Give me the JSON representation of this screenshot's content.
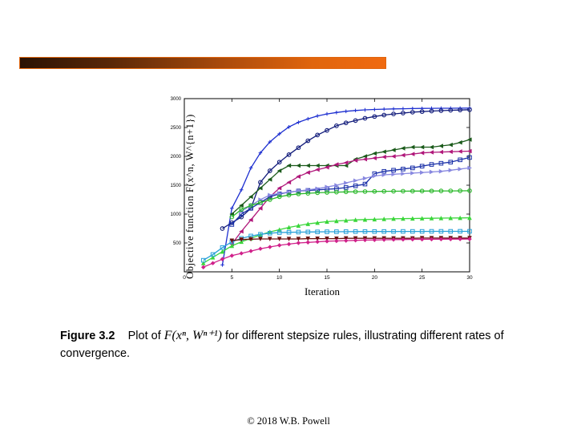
{
  "header": {
    "bar_color": "#e0650e"
  },
  "chart_data": {
    "type": "line",
    "title": "",
    "xlabel": "Iteration",
    "ylabel": "Objective function F(x^n, W^{n+1})",
    "xlim": [
      0,
      30
    ],
    "ylim": [
      0,
      3000
    ],
    "xticks": [
      0,
      5,
      10,
      15,
      20,
      25,
      30
    ],
    "yticks": [
      500,
      1000,
      1500,
      2000,
      2500,
      3000
    ],
    "grid": false,
    "series": [
      {
        "name": "plus-blue",
        "color": "#1d2fd0",
        "marker": "plus",
        "x": [
          4,
          5,
          6,
          7,
          8,
          9,
          10,
          11,
          12,
          13,
          14,
          15,
          16,
          17,
          18,
          19,
          20,
          21,
          22,
          23,
          24,
          25,
          26,
          27,
          28,
          29,
          30
        ],
        "values": [
          120,
          1100,
          1420,
          1800,
          2060,
          2250,
          2390,
          2510,
          2590,
          2650,
          2700,
          2735,
          2760,
          2780,
          2795,
          2805,
          2812,
          2818,
          2822,
          2825,
          2828,
          2830,
          2832,
          2833,
          2834,
          2835,
          2836
        ]
      },
      {
        "name": "circle-darkblue",
        "color": "#101a7a",
        "marker": "circle",
        "x": [
          4,
          5,
          6,
          7,
          8,
          9,
          10,
          11,
          12,
          13,
          14,
          15,
          16,
          17,
          18,
          19,
          20,
          21,
          22,
          23,
          24,
          25,
          26,
          27,
          28,
          29,
          30
        ],
        "values": [
          750,
          850,
          950,
          1100,
          1550,
          1750,
          1900,
          2030,
          2150,
          2270,
          2370,
          2450,
          2530,
          2580,
          2620,
          2660,
          2690,
          2715,
          2735,
          2750,
          2765,
          2775,
          2785,
          2792,
          2798,
          2803,
          2808
        ]
      },
      {
        "name": "triangle-left-darkgreen",
        "color": "#1a5a1a",
        "marker": "triangle-left",
        "x": [
          5,
          6,
          7,
          8,
          9,
          10,
          11,
          12,
          13,
          14,
          15,
          16,
          17,
          18,
          19,
          20,
          21,
          22,
          23,
          24,
          25,
          26,
          27,
          28,
          29,
          30
        ],
        "values": [
          1000,
          1150,
          1300,
          1450,
          1600,
          1750,
          1840,
          1840,
          1840,
          1840,
          1840,
          1840,
          1840,
          1950,
          2000,
          2050,
          2080,
          2110,
          2140,
          2160,
          2160,
          2160,
          2180,
          2200,
          2240,
          2290
        ]
      },
      {
        "name": "triangle-left-magenta",
        "color": "#b0177a",
        "marker": "triangle-left",
        "x": [
          5,
          6,
          7,
          8,
          9,
          10,
          11,
          12,
          13,
          14,
          15,
          16,
          17,
          18,
          19,
          20,
          21,
          22,
          23,
          24,
          25,
          26,
          27,
          28,
          29,
          30
        ],
        "values": [
          480,
          700,
          900,
          1100,
          1300,
          1450,
          1550,
          1650,
          1720,
          1770,
          1810,
          1860,
          1890,
          1930,
          1950,
          1970,
          1990,
          2000,
          2020,
          2040,
          2060,
          2070,
          2075,
          2080,
          2085,
          2090
        ]
      },
      {
        "name": "square-blue",
        "color": "#1a30a8",
        "marker": "square",
        "x": [
          5,
          6,
          7,
          8,
          9,
          10,
          11,
          12,
          13,
          14,
          15,
          16,
          17,
          18,
          19,
          20,
          21,
          22,
          23,
          24,
          25,
          26,
          27,
          28,
          29,
          30
        ],
        "values": [
          820,
          1000,
          1100,
          1200,
          1300,
          1350,
          1380,
          1400,
          1410,
          1420,
          1430,
          1440,
          1460,
          1490,
          1520,
          1700,
          1740,
          1760,
          1780,
          1800,
          1830,
          1860,
          1880,
          1900,
          1940,
          1980
        ]
      },
      {
        "name": "triangle-right-lavender",
        "color": "#8888e0",
        "marker": "triangle-right",
        "x": [
          6,
          7,
          8,
          9,
          10,
          11,
          12,
          13,
          14,
          15,
          16,
          17,
          18,
          19,
          20,
          21,
          22,
          23,
          24,
          25,
          26,
          27,
          28,
          29,
          30
        ],
        "values": [
          1050,
          1150,
          1250,
          1330,
          1360,
          1380,
          1400,
          1420,
          1440,
          1470,
          1500,
          1540,
          1580,
          1620,
          1660,
          1680,
          1690,
          1700,
          1710,
          1720,
          1730,
          1740,
          1760,
          1780,
          1800
        ]
      },
      {
        "name": "circle-green",
        "color": "#2ab82a",
        "marker": "circle",
        "x": [
          5,
          6,
          7,
          8,
          9,
          10,
          11,
          12,
          13,
          14,
          15,
          16,
          17,
          18,
          19,
          20,
          21,
          22,
          23,
          24,
          25,
          26,
          27,
          28,
          29,
          30
        ],
        "values": [
          950,
          1080,
          1150,
          1200,
          1250,
          1300,
          1330,
          1350,
          1360,
          1370,
          1375,
          1380,
          1385,
          1388,
          1390,
          1392,
          1394,
          1396,
          1397,
          1398,
          1399,
          1400,
          1401,
          1402,
          1403,
          1404
        ]
      },
      {
        "name": "triangle-up-green",
        "color": "#3ad63a",
        "marker": "triangle-up",
        "x": [
          2,
          3,
          4,
          5,
          6,
          7,
          8,
          9,
          10,
          11,
          12,
          13,
          14,
          15,
          16,
          17,
          18,
          19,
          20,
          21,
          22,
          23,
          24,
          25,
          26,
          27,
          28,
          29,
          30
        ],
        "values": [
          150,
          250,
          350,
          450,
          520,
          580,
          640,
          690,
          730,
          770,
          800,
          830,
          850,
          870,
          880,
          890,
          900,
          905,
          910,
          915,
          920,
          922,
          924,
          926,
          928,
          930,
          932,
          934,
          936
        ]
      },
      {
        "name": "square-cyan",
        "color": "#28a0d8",
        "marker": "square",
        "x": [
          2,
          3,
          4,
          5,
          6,
          7,
          8,
          9,
          10,
          11,
          12,
          13,
          14,
          15,
          16,
          17,
          18,
          19,
          20,
          21,
          22,
          23,
          24,
          25,
          26,
          27,
          28,
          29,
          30
        ],
        "values": [
          200,
          300,
          420,
          520,
          580,
          620,
          650,
          670,
          680,
          685,
          688,
          690,
          692,
          694,
          695,
          696,
          697,
          698,
          698,
          699,
          699,
          700,
          700,
          700,
          701,
          701,
          701,
          702,
          702
        ]
      },
      {
        "name": "triangle-down-darkred",
        "color": "#6a1010",
        "marker": "triangle-down",
        "x": [
          5,
          6,
          7,
          8,
          9,
          10,
          11,
          12,
          13,
          14,
          15,
          16,
          17,
          18,
          19,
          20,
          21,
          22,
          23,
          24,
          25,
          26,
          27,
          28,
          29,
          30
        ],
        "values": [
          540,
          560,
          565,
          570,
          570,
          570,
          570,
          570,
          575,
          575,
          575,
          575,
          580,
          580,
          580,
          580,
          580,
          580,
          580,
          580,
          585,
          585,
          585,
          585,
          585,
          585
        ]
      },
      {
        "name": "diamond-pink",
        "color": "#d0208a",
        "marker": "diamond",
        "x": [
          2,
          3,
          4,
          5,
          6,
          7,
          8,
          9,
          10,
          11,
          12,
          13,
          14,
          15,
          16,
          17,
          18,
          19,
          20,
          21,
          22,
          23,
          24,
          25,
          26,
          27,
          28,
          29,
          30
        ],
        "values": [
          80,
          150,
          220,
          280,
          320,
          360,
          400,
          430,
          460,
          480,
          500,
          510,
          520,
          530,
          535,
          540,
          545,
          550,
          552,
          555,
          558,
          560,
          562,
          563,
          564,
          565,
          566,
          567,
          568
        ]
      }
    ]
  },
  "caption": {
    "figure_label": "Figure 3.2",
    "text_before": "Plot of",
    "math": "F(xⁿ, Wⁿ⁺¹)",
    "text_after": "for different stepsize rules, illustrating different rates of convergence."
  },
  "footer": {
    "text": "© 2018 W.B. Powell"
  }
}
